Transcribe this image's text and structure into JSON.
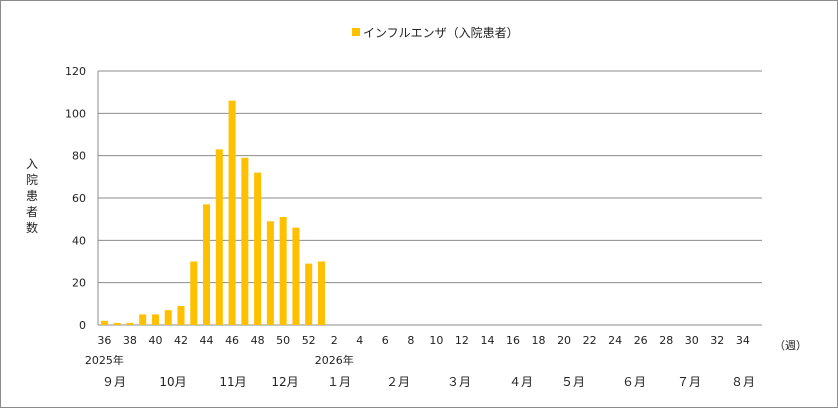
{
  "chart_data": {
    "type": "bar",
    "legend": {
      "label": "インフルエンザ（入院患者）",
      "position": "top"
    },
    "ylabel": "入院患者数",
    "xlabel_unit": "（週）",
    "ylim": [
      0,
      120
    ],
    "yticks": [
      0,
      20,
      40,
      60,
      80,
      100,
      120
    ],
    "grid": true,
    "color": "#FFC000",
    "xticks": [
      "36",
      "38",
      "40",
      "42",
      "44",
      "46",
      "48",
      "50",
      "52",
      "2",
      "4",
      "6",
      "8",
      "10",
      "12",
      "14",
      "16",
      "18",
      "20",
      "22",
      "24",
      "26",
      "28",
      "30",
      "32",
      "34"
    ],
    "weeks": [
      "36",
      "37",
      "38",
      "39",
      "40",
      "41",
      "42",
      "43",
      "44",
      "45",
      "46",
      "47",
      "48",
      "49",
      "50",
      "51",
      "52",
      "1",
      "2",
      "3",
      "4",
      "5",
      "6",
      "7",
      "8",
      "9",
      "10",
      "11",
      "12",
      "13",
      "14",
      "15",
      "16",
      "17",
      "18",
      "19",
      "20",
      "21",
      "22",
      "23",
      "24",
      "25",
      "26",
      "27",
      "28",
      "29",
      "30",
      "31",
      "32",
      "33",
      "34",
      "35"
    ],
    "series": [
      {
        "values": [
          2,
          1,
          1,
          5,
          5,
          7,
          9,
          30,
          57,
          83,
          106,
          79,
          72,
          49,
          51,
          46,
          29,
          30
        ]
      }
    ],
    "year_labels": [
      {
        "text": "2025年",
        "at_week_index": 0
      },
      {
        "text": "2026年",
        "at_week_index": 18
      }
    ],
    "month_labels": [
      "９月",
      "10月",
      "11月",
      "12月",
      "１月",
      "２月",
      "３月",
      "４月",
      "５月",
      "６月",
      "７月",
      "８月"
    ]
  }
}
